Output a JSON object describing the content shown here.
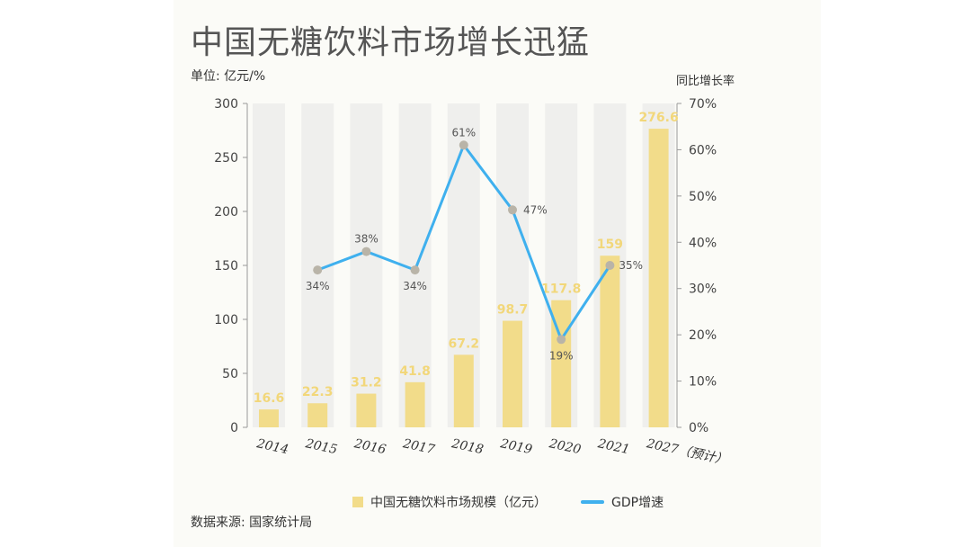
{
  "header": {
    "title": "中国无糖饮料市场增长迅猛",
    "unit_left": "单位: 亿元/%",
    "unit_right": "同比增长率"
  },
  "footer": {
    "source": "数据来源: 国家统计局"
  },
  "legend": {
    "bar": "中国无糖饮料市场规模（亿元）",
    "line": "GDP增速"
  },
  "colors": {
    "bar": "#f2dc8a",
    "bar_bg": "#efefed",
    "bar_label": "#f2d77a",
    "line": "#3fb0ee",
    "marker": "#b9b4a8"
  },
  "chart_data": {
    "type": "bar",
    "categories": [
      "2014",
      "2015",
      "2016",
      "2017",
      "2018",
      "2019",
      "2020",
      "2021",
      "2027（预计）"
    ],
    "series": [
      {
        "name": "中国无糖饮料市场规模（亿元）",
        "type": "bar",
        "axis": "left",
        "values": [
          16.6,
          22.3,
          31.2,
          41.8,
          67.2,
          98.7,
          117.8,
          159,
          276.6
        ],
        "labels": [
          "16.6",
          "22.3",
          "31.2",
          "41.8",
          "67.2",
          "98.7",
          "117.8",
          "159",
          "276.6"
        ]
      },
      {
        "name": "GDP增速",
        "type": "line",
        "axis": "right",
        "values": [
          null,
          34,
          38,
          34,
          61,
          47,
          19,
          35,
          null
        ],
        "labels": [
          null,
          "34%",
          "38%",
          "34%",
          "61%",
          "47%",
          "19%",
          "35%",
          null
        ]
      }
    ],
    "ylim": [
      0,
      300
    ],
    "yticks": [
      0,
      50,
      100,
      150,
      200,
      250,
      300
    ],
    "y2lim": [
      0,
      70
    ],
    "y2ticks": [
      "0%",
      "10%",
      "20%",
      "30%",
      "40%",
      "50%",
      "60%",
      "70%"
    ],
    "background_columns": true,
    "legend_position": "bottom"
  }
}
